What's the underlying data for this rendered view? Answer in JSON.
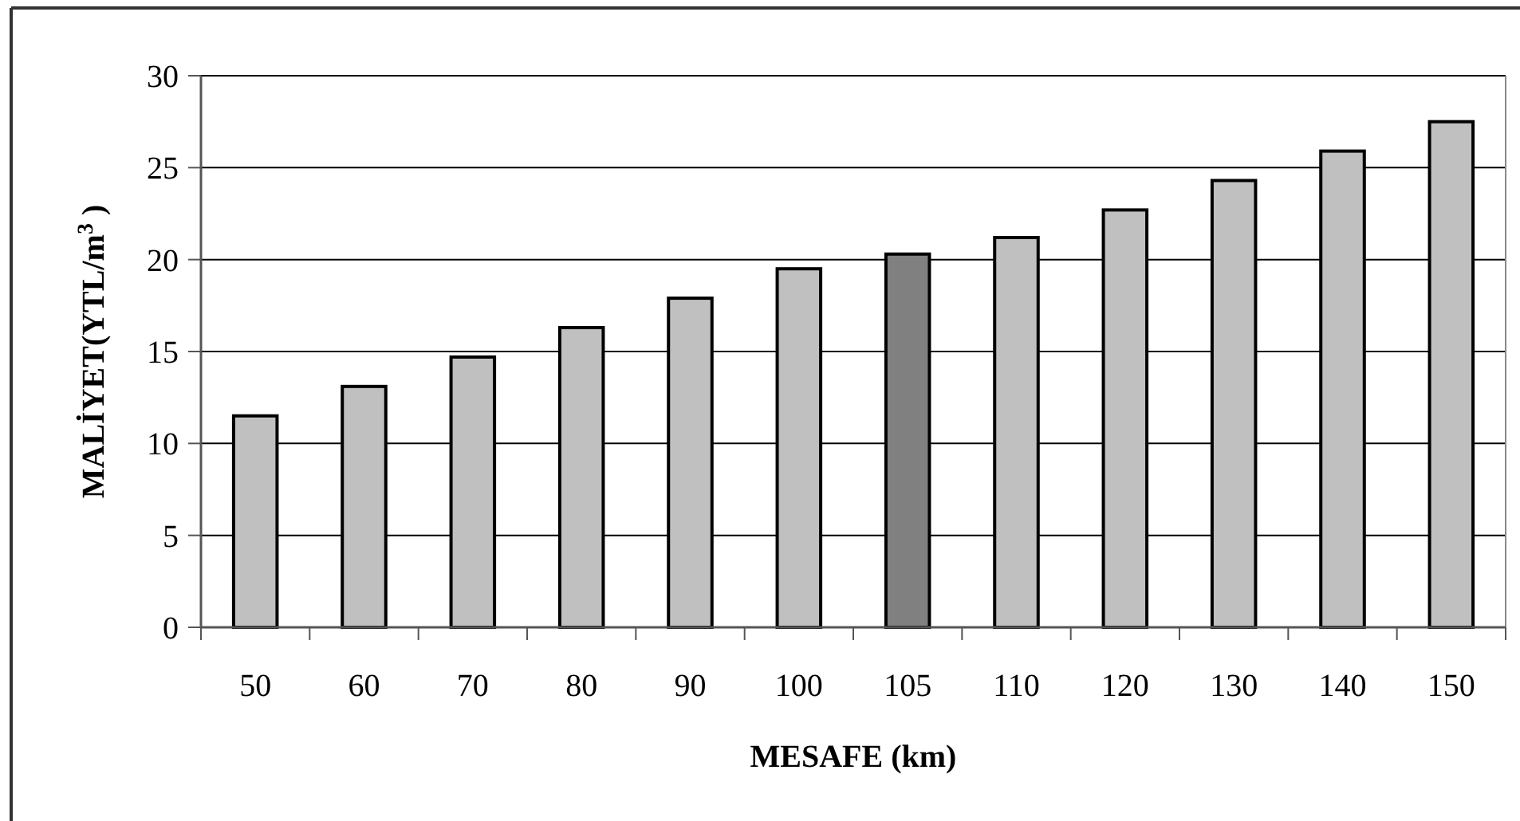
{
  "chart_data": {
    "type": "bar",
    "xlabel": "MESAFE (km)",
    "ylabel": "MALİYET(YTL/m$^{3}$ )",
    "categories": [
      "50",
      "60",
      "70",
      "80",
      "90",
      "100",
      "105",
      "110",
      "120",
      "130",
      "140",
      "150"
    ],
    "values": [
      11.5,
      13.1,
      14.7,
      16.3,
      17.9,
      19.5,
      20.3,
      21.2,
      22.7,
      24.3,
      25.9,
      27.5
    ],
    "colors": [
      "#c0c0c0",
      "#c0c0c0",
      "#c0c0c0",
      "#c0c0c0",
      "#c0c0c0",
      "#c0c0c0",
      "#808080",
      "#c0c0c0",
      "#c0c0c0",
      "#c0c0c0",
      "#c0c0c0",
      "#c0c0c0"
    ],
    "ylim": [
      0,
      30
    ],
    "yticks": [
      0,
      5,
      10,
      15,
      20,
      25,
      30
    ],
    "grid": "y"
  }
}
